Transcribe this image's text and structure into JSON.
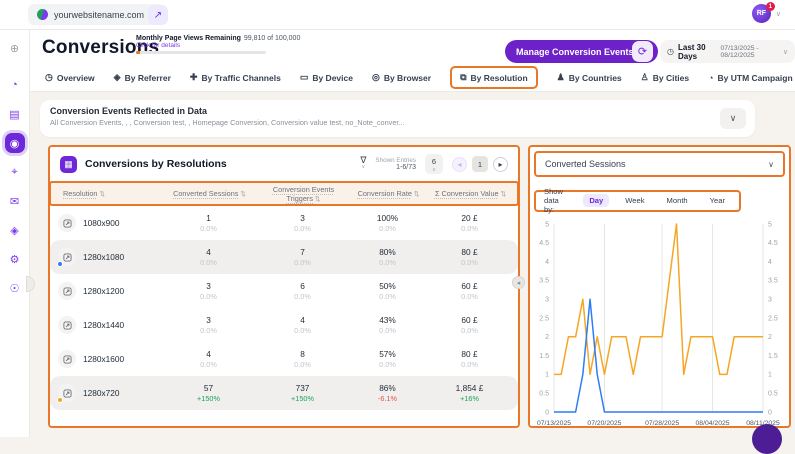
{
  "colors": {
    "annotation_orange": "#e8772a",
    "primary_purple": "#6d28d9",
    "positive_green": "#17a45b",
    "negative_red": "#e05449"
  },
  "icons": {
    "chevron_down": "∨",
    "external_link": "↗",
    "refresh": "⟳",
    "clock": "◷",
    "funnel": "∇",
    "sort": "⇅",
    "plus_circle": "⊕",
    "table": "▦",
    "prev": "◂",
    "next": "▸",
    "collapse_left": "◂"
  },
  "topbar": {
    "site_selector": "yourwebsitename.com",
    "avatar_initials": "RF",
    "avatar_badge": "1"
  },
  "header": {
    "title": "Conversions",
    "page_views_label": "Monthly Page Views Remaining",
    "page_views_value": "99,810 of 100,000",
    "page_views_link": "Click for details",
    "page_views_used_pct": 3,
    "manage_button": "Manage Conversion Events",
    "date_preset": "Last 30 Days",
    "date_range": "07/13/2025 - 08/12/2025"
  },
  "tabs": [
    {
      "label": "Overview",
      "name": "overview",
      "glyph": "◷",
      "highlighted": false
    },
    {
      "label": "By Referrer",
      "name": "by-referrer",
      "glyph": "◈",
      "highlighted": false
    },
    {
      "label": "By Traffic Channels",
      "name": "by-traffic-channels",
      "glyph": "✚",
      "highlighted": false
    },
    {
      "label": "By Device",
      "name": "by-device",
      "glyph": "▭",
      "highlighted": false
    },
    {
      "label": "By Browser",
      "name": "by-browser",
      "glyph": "◎",
      "highlighted": false
    },
    {
      "label": "By Resolution",
      "name": "by-resolution",
      "glyph": "⧉",
      "highlighted": true
    },
    {
      "label": "By Countries",
      "name": "by-countries",
      "glyph": "♟",
      "highlighted": false
    },
    {
      "label": "By Cities",
      "name": "by-cities",
      "glyph": "♙",
      "highlighted": false
    },
    {
      "label": "By UTM Campaign",
      "name": "by-utm-campaign",
      "glyph": "◔",
      "highlighted": false
    }
  ],
  "rail": [
    {
      "name": "add",
      "glyph": "⊕",
      "style": "muted"
    },
    {
      "name": "analytics",
      "glyph": "◔",
      "style": "normal"
    },
    {
      "name": "projects",
      "glyph": "▤",
      "style": "normal"
    },
    {
      "name": "conversions",
      "glyph": "◉",
      "style": "active"
    },
    {
      "name": "visitors",
      "glyph": "⌖",
      "style": "normal"
    },
    {
      "name": "messages",
      "glyph": "✉",
      "style": "normal"
    },
    {
      "name": "privacy",
      "glyph": "◈",
      "style": "normal"
    },
    {
      "name": "settings",
      "glyph": "⚙",
      "style": "normal"
    },
    {
      "name": "location",
      "glyph": "☉",
      "style": "normal"
    }
  ],
  "events_banner": {
    "title": "Conversion Events Reflected in Data",
    "subtitle": "All Conversion Events,          ,          , Conversion test,          , Homepage Conversion, Conversion value test, no_Note_conver..."
  },
  "table": {
    "title": "Conversions by Resolutions",
    "shown_entries_label": "Shown Entries",
    "shown_entries_value": "1-6/73",
    "page_size": "6",
    "page": "1",
    "columns": [
      "Resolution",
      "Converted Sessions",
      "Conversion Events Triggers",
      "Conversion Rate",
      "Σ Conversion Value"
    ],
    "rows": [
      {
        "resolution": "1080x900",
        "sessions": "1",
        "sessions_chg": "0.0%",
        "triggers": "3",
        "triggers_chg": "0.0%",
        "rate": "100%",
        "rate_chg": "0.0%",
        "value": "20 £",
        "value_chg": "0.0%",
        "highlight": false,
        "dot": null
      },
      {
        "resolution": "1280x1080",
        "sessions": "4",
        "sessions_chg": "0.0%",
        "triggers": "7",
        "triggers_chg": "0.0%",
        "rate": "80%",
        "rate_chg": "0.0%",
        "value": "80 £",
        "value_chg": "0.0%",
        "highlight": true,
        "dot": "#2e7cf6"
      },
      {
        "resolution": "1280x1200",
        "sessions": "3",
        "sessions_chg": "0.0%",
        "triggers": "6",
        "triggers_chg": "0.0%",
        "rate": "50%",
        "rate_chg": "0.0%",
        "value": "60 £",
        "value_chg": "0.0%",
        "highlight": false,
        "dot": null
      },
      {
        "resolution": "1280x1440",
        "sessions": "3",
        "sessions_chg": "0.0%",
        "triggers": "4",
        "triggers_chg": "0.0%",
        "rate": "43%",
        "rate_chg": "0.0%",
        "value": "60 £",
        "value_chg": "0.0%",
        "highlight": false,
        "dot": null
      },
      {
        "resolution": "1280x1600",
        "sessions": "4",
        "sessions_chg": "0.0%",
        "triggers": "8",
        "triggers_chg": "0.0%",
        "rate": "57%",
        "rate_chg": "0.0%",
        "value": "80 £",
        "value_chg": "0.0%",
        "highlight": false,
        "dot": null
      },
      {
        "resolution": "1280x720",
        "sessions": "57",
        "sessions_chg": "+150%",
        "triggers": "737",
        "triggers_chg": "+150%",
        "rate": "86%",
        "rate_chg": "-6.1%",
        "value": "1,854 £",
        "value_chg": "+16%",
        "highlight": true,
        "dot": "#f5a623"
      }
    ]
  },
  "chart_panel": {
    "metric_dropdown": "Converted Sessions",
    "show_data_by_label": "Show data by:",
    "period_options": [
      "Day",
      "Week",
      "Month",
      "Year"
    ],
    "selected_period": "Day"
  },
  "chart_data": {
    "type": "line",
    "x_tick_labels": [
      "07/13/2025",
      "07/20/2025",
      "07/28/2025",
      "08/04/2025",
      "08/11/2025"
    ],
    "x_tick_indices": [
      0,
      7,
      15,
      22,
      29
    ],
    "num_points": 30,
    "ylim": [
      0,
      5
    ],
    "y_ticks": [
      0,
      0.5,
      1,
      1.5,
      2,
      2.5,
      3,
      3.5,
      4,
      4.5,
      5
    ],
    "grid": true,
    "legend": "none",
    "series": [
      {
        "name": "converted-sessions-current",
        "color": "#f5a623",
        "values": [
          1,
          1,
          2,
          2,
          3,
          1,
          2,
          1,
          2,
          2,
          2,
          1,
          2,
          2,
          2,
          2,
          3.5,
          5,
          1,
          2,
          2,
          2,
          2,
          1,
          1,
          2,
          2,
          2,
          2,
          2
        ]
      },
      {
        "name": "converted-sessions-comparison",
        "color": "#2e7cf6",
        "values": [
          0,
          0,
          0,
          0,
          1,
          3,
          1,
          0,
          0,
          0,
          0,
          0,
          0,
          0,
          0,
          0,
          0,
          0,
          0,
          0,
          0,
          0,
          0,
          0,
          0,
          0,
          0,
          0,
          0,
          0
        ]
      }
    ]
  }
}
